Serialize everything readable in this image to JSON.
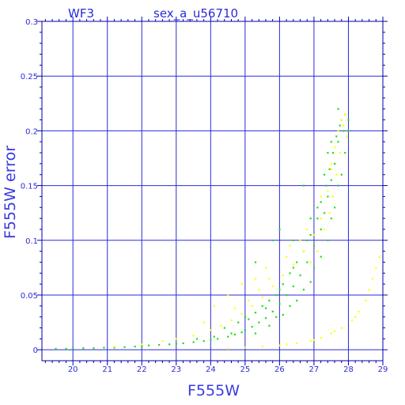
{
  "chart_data": {
    "type": "scatter",
    "header_left": "WF3",
    "title": "sex_a_u56710",
    "xlabel": "F555W",
    "ylabel": "F555W error",
    "xlim": [
      19.1,
      29
    ],
    "ylim": [
      -0.01,
      0.3
    ],
    "xticks": [
      20,
      21,
      22,
      23,
      24,
      25,
      26,
      27,
      28,
      29
    ],
    "yticks": [
      0,
      0.05,
      0.1,
      0.15,
      0.2,
      0.25,
      0.3
    ],
    "ytick_labels": [
      "0",
      "0.05",
      "0.1",
      "0.15",
      "0.2",
      "0.25",
      "0.3"
    ],
    "grid": true,
    "colors": {
      "axes": "#0000aa",
      "grid": "#2a2ad8",
      "text": "#2a2ad8",
      "green": "#22dd22",
      "yellow": "#ffff00"
    },
    "series": [
      {
        "color": "green",
        "points": [
          [
            19.5,
            0.001
          ],
          [
            19.8,
            0.001
          ],
          [
            20.0,
            0.001
          ],
          [
            20.3,
            0.0015
          ],
          [
            20.6,
            0.0015
          ],
          [
            20.9,
            0.002
          ],
          [
            21.2,
            0.002
          ],
          [
            21.5,
            0.0025
          ],
          [
            21.8,
            0.003
          ],
          [
            22.0,
            0.0035
          ],
          [
            22.2,
            0.004
          ],
          [
            22.5,
            0.0045
          ],
          [
            22.8,
            0.005
          ],
          [
            23.0,
            0.0055
          ],
          [
            23.2,
            0.006
          ],
          [
            23.5,
            0.007
          ],
          [
            23.8,
            0.008
          ],
          [
            24.0,
            0.009
          ],
          [
            24.2,
            0.01
          ],
          [
            24.5,
            0.012
          ],
          [
            24.7,
            0.014
          ],
          [
            24.9,
            0.016
          ],
          [
            25.0,
            0.018
          ],
          [
            25.2,
            0.021
          ],
          [
            25.4,
            0.025
          ],
          [
            25.6,
            0.029
          ],
          [
            25.8,
            0.035
          ],
          [
            26.0,
            0.042
          ],
          [
            26.2,
            0.05
          ],
          [
            26.4,
            0.058
          ],
          [
            26.6,
            0.068
          ],
          [
            26.8,
            0.08
          ],
          [
            27.0,
            0.095
          ],
          [
            27.2,
            0.11
          ],
          [
            27.3,
            0.125
          ],
          [
            27.4,
            0.14
          ],
          [
            27.5,
            0.155
          ],
          [
            27.6,
            0.17
          ],
          [
            27.7,
            0.19
          ],
          [
            27.8,
            0.21
          ],
          [
            25.0,
            0.03
          ],
          [
            25.3,
            0.034
          ],
          [
            25.5,
            0.04
          ],
          [
            25.7,
            0.045
          ],
          [
            25.9,
            0.05
          ],
          [
            26.1,
            0.06
          ],
          [
            26.3,
            0.07
          ],
          [
            26.5,
            0.08
          ],
          [
            26.7,
            0.09
          ],
          [
            26.9,
            0.105
          ],
          [
            27.1,
            0.12
          ],
          [
            27.2,
            0.135
          ],
          [
            27.35,
            0.15
          ],
          [
            27.45,
            0.165
          ],
          [
            27.55,
            0.18
          ],
          [
            27.65,
            0.195
          ],
          [
            27.75,
            0.205
          ],
          [
            27.9,
            0.215
          ],
          [
            28.0,
            0.21
          ],
          [
            27.85,
            0.2
          ],
          [
            24.4,
            0.02
          ],
          [
            24.8,
            0.025
          ],
          [
            25.1,
            0.028
          ],
          [
            25.6,
            0.038
          ],
          [
            26.0,
            0.055
          ],
          [
            26.4,
            0.075
          ],
          [
            26.8,
            0.1
          ],
          [
            27.1,
            0.13
          ],
          [
            27.3,
            0.16
          ],
          [
            27.5,
            0.19
          ],
          [
            25.3,
            0.015
          ],
          [
            25.7,
            0.022
          ],
          [
            26.1,
            0.032
          ],
          [
            26.5,
            0.045
          ],
          [
            26.9,
            0.062
          ],
          [
            27.2,
            0.085
          ],
          [
            27.5,
            0.12
          ],
          [
            27.7,
            0.15
          ],
          [
            27.9,
            0.18
          ],
          [
            28.0,
            0.2
          ],
          [
            23.6,
            0.01
          ],
          [
            24.1,
            0.012
          ],
          [
            24.6,
            0.015
          ],
          [
            25.9,
            0.03
          ],
          [
            26.3,
            0.04
          ],
          [
            26.7,
            0.055
          ],
          [
            27.0,
            0.075
          ],
          [
            27.4,
            0.1
          ],
          [
            27.6,
            0.13
          ],
          [
            27.8,
            0.16
          ],
          [
            26.0,
            0.11
          ],
          [
            26.4,
            0.1
          ],
          [
            25.3,
            0.08
          ],
          [
            25.8,
            0.1
          ],
          [
            26.7,
            0.15
          ],
          [
            27.4,
            0.18
          ],
          [
            26.9,
            0.12
          ],
          [
            27.7,
            0.22
          ]
        ]
      },
      {
        "color": "yellow",
        "points": [
          [
            21.2,
            0.003
          ],
          [
            22.0,
            0.005
          ],
          [
            22.6,
            0.008
          ],
          [
            23.0,
            0.01
          ],
          [
            23.5,
            0.013
          ],
          [
            24.0,
            0.018
          ],
          [
            24.3,
            0.022
          ],
          [
            24.6,
            0.027
          ],
          [
            24.9,
            0.033
          ],
          [
            25.2,
            0.04
          ],
          [
            25.5,
            0.048
          ],
          [
            25.8,
            0.058
          ],
          [
            26.1,
            0.068
          ],
          [
            26.4,
            0.078
          ],
          [
            26.7,
            0.09
          ],
          [
            27.0,
            0.105
          ],
          [
            27.2,
            0.12
          ],
          [
            27.4,
            0.145
          ],
          [
            27.5,
            0.165
          ],
          [
            27.6,
            0.185
          ],
          [
            27.7,
            0.2
          ],
          [
            27.8,
            0.21
          ],
          [
            27.9,
            0.215
          ],
          [
            27.75,
            0.18
          ],
          [
            27.65,
            0.16
          ],
          [
            27.55,
            0.14
          ],
          [
            27.45,
            0.125
          ],
          [
            27.3,
            0.11
          ],
          [
            27.1,
            0.09
          ],
          [
            26.9,
            0.08
          ],
          [
            24.1,
            0.04
          ],
          [
            24.5,
            0.05
          ],
          [
            24.9,
            0.06
          ],
          [
            25.3,
            0.065
          ],
          [
            25.6,
            0.075
          ],
          [
            23.8,
            0.025
          ],
          [
            24.7,
            0.038
          ],
          [
            25.4,
            0.055
          ],
          [
            26.2,
            0.085
          ],
          [
            26.6,
            0.1
          ],
          [
            25.1,
            0.045
          ],
          [
            25.7,
            0.065
          ],
          [
            26.3,
            0.095
          ],
          [
            26.8,
            0.11
          ],
          [
            27.2,
            0.14
          ],
          [
            27.5,
            0.17
          ],
          [
            27.85,
            0.205
          ],
          [
            27.95,
            0.195
          ],
          [
            24.5,
            0.001
          ],
          [
            25.0,
            0.002
          ],
          [
            25.5,
            0.003
          ],
          [
            26.0,
            0.004
          ],
          [
            26.5,
            0.006
          ],
          [
            26.9,
            0.008
          ],
          [
            27.2,
            0.011
          ],
          [
            27.5,
            0.015
          ],
          [
            27.8,
            0.02
          ],
          [
            28.1,
            0.027
          ],
          [
            28.3,
            0.035
          ],
          [
            28.5,
            0.045
          ],
          [
            28.6,
            0.055
          ],
          [
            28.7,
            0.065
          ],
          [
            28.8,
            0.075
          ],
          [
            28.9,
            0.085
          ],
          [
            26.2,
            0.005
          ],
          [
            27.0,
            0.009
          ],
          [
            27.6,
            0.017
          ],
          [
            28.2,
            0.03
          ]
        ]
      }
    ]
  }
}
